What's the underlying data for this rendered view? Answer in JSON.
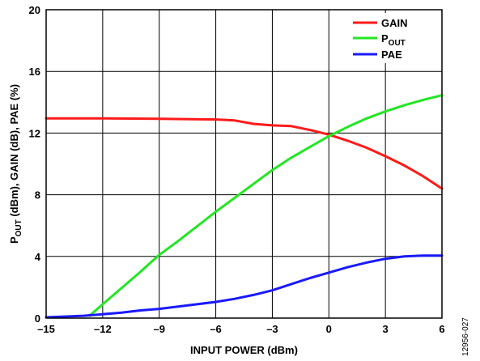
{
  "chart_data": {
    "type": "line",
    "xlabel": "INPUT POWER (dBm)",
    "ylabel_prefix": "P",
    "ylabel_sub": "OUT",
    "ylabel_rest": " (dBm), GAIN (dB), PAE (%)",
    "xlim": [
      -15,
      6
    ],
    "ylim": [
      0,
      20
    ],
    "xticks": [
      -15,
      -12,
      -9,
      -6,
      -3,
      0,
      3,
      6
    ],
    "yticks": [
      0,
      4,
      8,
      12,
      16,
      20
    ],
    "grid": true,
    "legend_position": "top-right",
    "series": [
      {
        "name": "GAIN",
        "color": "#ff1a1a",
        "x": [
          -15,
          -12,
          -9,
          -6,
          -5,
          -4,
          -3,
          -2,
          -1,
          0,
          1,
          2,
          3,
          4,
          5,
          6
        ],
        "y": [
          12.95,
          12.95,
          12.93,
          12.88,
          12.82,
          12.6,
          12.5,
          12.45,
          12.2,
          11.9,
          11.5,
          11.05,
          10.5,
          9.9,
          9.2,
          8.4
        ]
      },
      {
        "name_prefix": "P",
        "name_sub": "OUT",
        "color": "#22e622",
        "x": [
          -12.7,
          -12,
          -10,
          -9,
          -8,
          -6,
          -4,
          -3,
          -2,
          -1,
          0,
          1,
          2,
          3,
          4,
          5,
          6
        ],
        "y": [
          0.15,
          0.9,
          3.0,
          4.1,
          5.0,
          6.9,
          8.7,
          9.6,
          10.4,
          11.1,
          11.8,
          12.4,
          12.95,
          13.4,
          13.8,
          14.15,
          14.45
        ]
      },
      {
        "name": "PAE",
        "color": "#1a1aff",
        "x": [
          -15,
          -13,
          -12,
          -11,
          -10,
          -9,
          -8,
          -7,
          -6,
          -5,
          -4,
          -3,
          -2,
          -1,
          0,
          1,
          2,
          3,
          4,
          5,
          6
        ],
        "y": [
          0.05,
          0.15,
          0.25,
          0.35,
          0.5,
          0.6,
          0.75,
          0.9,
          1.05,
          1.25,
          1.5,
          1.8,
          2.2,
          2.6,
          2.95,
          3.3,
          3.6,
          3.85,
          4.0,
          4.05,
          4.05
        ]
      }
    ]
  },
  "figure_id": "12956-027"
}
